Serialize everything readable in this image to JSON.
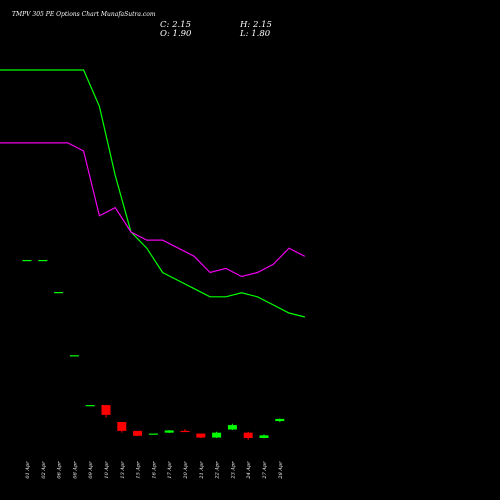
{
  "header": {
    "title": "TMPV 305 PE Options  Chart MunafaSutra.com",
    "close_label": "C: 2.15",
    "high_label": "H: 2.15",
    "open_label": "O: 1.90",
    "low_label": "L: 1.80"
  },
  "chart_data": {
    "type": "candlestick",
    "title": "TMPV 305 PE Options  Chart MunafaSutra.com",
    "categories": [
      "01 Apr",
      "02 Apr",
      "06 Apr",
      "08 Apr",
      "09 Apr",
      "10 Apr",
      "13 Apr",
      "15 Apr",
      "16 Apr",
      "17 Apr",
      "20 Apr",
      "21 Apr",
      "22 Apr",
      "23 Apr",
      "24 Apr",
      "27 Apr",
      "28 Apr"
    ],
    "candles": [
      {
        "open": 20.0,
        "high": 20.0,
        "low": 20.0,
        "close": 20.0
      },
      {
        "open": 20.0,
        "high": 20.0,
        "low": 20.0,
        "close": 20.0
      },
      {
        "open": 16.4,
        "high": 16.4,
        "low": 16.4,
        "close": 16.4
      },
      {
        "open": 9.3,
        "high": 9.3,
        "low": 9.3,
        "close": 9.3
      },
      {
        "open": 3.7,
        "high": 3.7,
        "low": 3.7,
        "close": 3.7
      },
      {
        "open": 3.7,
        "high": 3.7,
        "low": 2.3,
        "close": 2.6
      },
      {
        "open": 1.8,
        "high": 1.8,
        "low": 0.6,
        "close": 0.8
      },
      {
        "open": 0.8,
        "high": 0.8,
        "low": 0.2,
        "close": 0.25
      },
      {
        "open": 0.5,
        "high": 0.5,
        "low": 0.5,
        "close": 0.5
      },
      {
        "open": 0.6,
        "high": 0.9,
        "low": 0.55,
        "close": 0.85
      },
      {
        "open": 0.8,
        "high": 1.0,
        "low": 0.7,
        "close": 0.75
      },
      {
        "open": 0.5,
        "high": 0.5,
        "low": 0.0,
        "close": 0.05
      },
      {
        "open": 0.05,
        "high": 0.7,
        "low": 0.0,
        "close": 0.6
      },
      {
        "open": 0.95,
        "high": 1.6,
        "low": 0.9,
        "close": 1.45
      },
      {
        "open": 0.6,
        "high": 0.7,
        "low": -0.2,
        "close": 0.0
      },
      {
        "open": 0.0,
        "high": 0.4,
        "low": 0.0,
        "close": 0.3
      },
      {
        "open": 1.9,
        "high": 2.15,
        "low": 1.8,
        "close": 2.15
      }
    ],
    "line_series": [
      {
        "color": "#00ff00",
        "values": [
          76,
          76,
          76,
          71.5,
          63,
          56,
          54,
          51,
          50,
          49,
          48,
          48,
          48.5,
          48,
          47,
          46,
          45.5
        ]
      },
      {
        "color": "#ee00ee",
        "values": [
          67,
          67,
          66,
          58,
          59,
          56,
          55,
          55,
          54,
          53,
          51,
          51.5,
          50.5,
          51,
          52,
          54,
          53
        ]
      }
    ],
    "colors": {
      "up": "#00ff00",
      "down": "#ff0000",
      "background": "#000000"
    }
  }
}
